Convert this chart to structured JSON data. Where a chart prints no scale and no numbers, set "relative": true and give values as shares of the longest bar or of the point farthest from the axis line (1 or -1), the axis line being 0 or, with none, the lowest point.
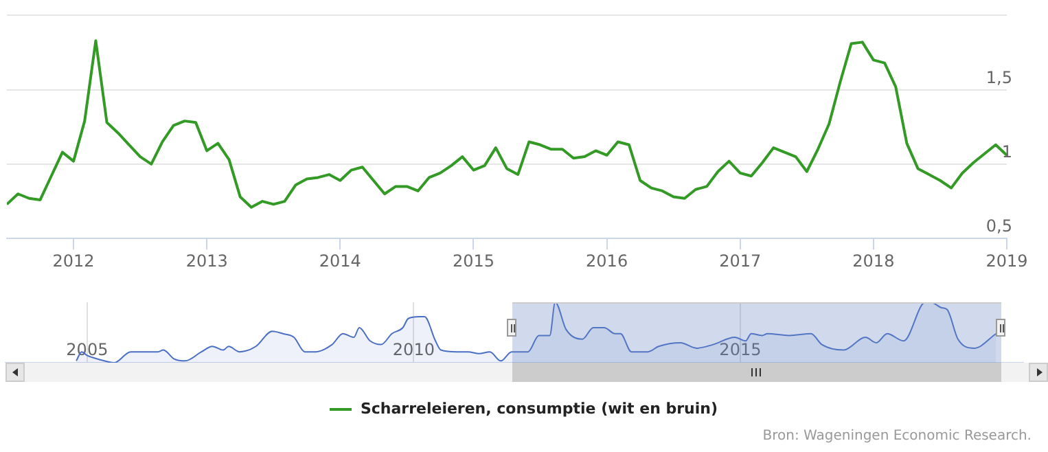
{
  "chart_data": [
    {
      "type": "line",
      "legend": "bottom",
      "grid": "y",
      "marker": "none",
      "line_style": "solid",
      "xlim": [
        "2011-07",
        "2019-01"
      ],
      "xticks": [
        "2012",
        "2013",
        "2014",
        "2015",
        "2016",
        "2017",
        "2018",
        "2019"
      ],
      "ylim": [
        0.5,
        2
      ],
      "yticks": [
        {
          "value": 0.5,
          "label": "0,5"
        },
        1,
        {
          "value": 1.5,
          "label": "1,5"
        },
        {
          "value": 2,
          "label": null
        }
      ],
      "x": [
        "2011-07",
        "2011-08",
        "2011-09",
        "2011-10",
        "2011-11",
        "2011-12",
        "2012-01",
        "2012-02",
        "2012-03",
        "2012-04",
        "2012-05",
        "2012-06",
        "2012-07",
        "2012-08",
        "2012-09",
        "2012-10",
        "2012-11",
        "2012-12",
        "2013-01",
        "2013-02",
        "2013-03",
        "2013-04",
        "2013-05",
        "2013-06",
        "2013-07",
        "2013-08",
        "2013-09",
        "2013-10",
        "2013-11",
        "2013-12",
        "2014-01",
        "2014-02",
        "2014-03",
        "2014-04",
        "2014-05",
        "2014-06",
        "2014-07",
        "2014-08",
        "2014-09",
        "2014-10",
        "2014-11",
        "2014-12",
        "2015-01",
        "2015-02",
        "2015-03",
        "2015-04",
        "2015-05",
        "2015-06",
        "2015-07",
        "2015-08",
        "2015-09",
        "2015-10",
        "2015-11",
        "2015-12",
        "2016-01",
        "2016-02",
        "2016-03",
        "2016-04",
        "2016-05",
        "2016-06",
        "2016-07",
        "2016-08",
        "2016-09",
        "2016-10",
        "2016-11",
        "2016-12",
        "2017-01",
        "2017-02",
        "2017-03",
        "2017-04",
        "2017-05",
        "2017-06",
        "2017-07",
        "2017-08",
        "2017-09",
        "2017-10",
        "2017-11",
        "2017-12",
        "2018-01",
        "2018-02",
        "2018-03",
        "2018-04",
        "2018-05",
        "2018-06",
        "2018-07",
        "2018-08",
        "2018-09",
        "2018-10",
        "2018-11",
        "2018-12",
        "2019-01"
      ],
      "series": [
        {
          "name": "Scharreleieren, consumptie (wit en bruin)",
          "color": "#339a26",
          "values": [
            0.73,
            0.8,
            0.77,
            0.76,
            0.92,
            1.08,
            1.02,
            1.29,
            1.83,
            1.28,
            1.21,
            1.13,
            1.05,
            1.0,
            1.15,
            1.26,
            1.29,
            1.28,
            1.09,
            1.14,
            1.03,
            0.78,
            0.71,
            0.75,
            0.73,
            0.75,
            0.86,
            0.9,
            0.91,
            0.93,
            0.89,
            0.96,
            0.98,
            0.89,
            0.8,
            0.85,
            0.85,
            0.82,
            0.91,
            0.94,
            0.99,
            1.05,
            0.96,
            0.99,
            1.11,
            0.97,
            0.93,
            1.15,
            1.13,
            1.1,
            1.1,
            1.04,
            1.05,
            1.09,
            1.06,
            1.15,
            1.13,
            0.89,
            0.84,
            0.82,
            0.78,
            0.77,
            0.83,
            0.85,
            0.95,
            1.02,
            0.94,
            0.92,
            1.01,
            1.11,
            1.08,
            1.05,
            0.95,
            1.1,
            1.27,
            1.55,
            1.81,
            1.82,
            1.7,
            1.68,
            1.52,
            1.14,
            0.97,
            0.93,
            0.89,
            0.84,
            0.94,
            1.01,
            1.07,
            1.13,
            1.06
          ]
        }
      ],
      "annotations": [
        "Bron: Wageningen Economic Research."
      ]
    },
    {
      "type": "area",
      "relative": true,
      "grid": "x",
      "xlim": [
        "2003-10",
        "2019-05"
      ],
      "xticks": [
        "2005",
        "2010",
        "2015"
      ],
      "x": [
        "2004-11",
        "2004-12",
        "2005-01",
        "2005-03",
        "2005-06",
        "2005-09",
        "2005-12",
        "2006-02",
        "2006-03",
        "2006-05",
        "2006-07",
        "2006-10",
        "2006-12",
        "2007-02",
        "2007-03",
        "2007-05",
        "2007-08",
        "2007-11",
        "2008-01",
        "2008-03",
        "2008-05",
        "2008-07",
        "2008-10",
        "2008-12",
        "2009-02",
        "2009-03",
        "2009-05",
        "2009-07",
        "2009-09",
        "2009-11",
        "2009-12",
        "2010-02",
        "2010-03",
        "2010-05",
        "2010-06",
        "2010-09",
        "2010-11",
        "2011-01",
        "2011-03",
        "2011-05",
        "2011-07",
        "2011-10",
        "2011-12",
        "2012-02",
        "2012-03",
        "2012-05",
        "2012-08",
        "2012-10",
        "2012-12",
        "2013-02",
        "2013-03",
        "2013-05",
        "2013-08",
        "2013-10",
        "2014-02",
        "2014-05",
        "2014-08",
        "2014-12",
        "2015-02",
        "2015-03",
        "2015-05",
        "2015-06",
        "2015-10",
        "2016-02",
        "2016-04",
        "2016-08",
        "2016-12",
        "2017-02",
        "2017-04",
        "2017-07",
        "2017-11",
        "2017-12",
        "2018-02",
        "2018-03",
        "2018-05",
        "2018-08",
        "2018-12"
      ],
      "series": [
        {
          "color": "#4a6fc4",
          "values": [
            0.03,
            0.18,
            0.12,
            0.06,
            0,
            0.18,
            0.18,
            0.18,
            0.21,
            0.06,
            0.03,
            0.18,
            0.27,
            0.21,
            0.27,
            0.18,
            0.27,
            0.52,
            0.48,
            0.42,
            0.18,
            0.18,
            0.3,
            0.48,
            0.42,
            0.58,
            0.36,
            0.3,
            0.48,
            0.58,
            0.73,
            0.76,
            0.76,
            0.36,
            0.21,
            0.18,
            0.18,
            0.15,
            0.18,
            0.03,
            0.18,
            0.18,
            0.45,
            0.45,
            1,
            0.55,
            0.39,
            0.58,
            0.58,
            0.48,
            0.48,
            0.18,
            0.18,
            0.27,
            0.33,
            0.24,
            0.3,
            0.42,
            0.36,
            0.48,
            0.45,
            0.48,
            0.45,
            0.48,
            0.3,
            0.21,
            0.42,
            0.33,
            0.48,
            0.36,
            1,
            1,
            0.91,
            0.88,
            0.39,
            0.24,
            0.48
          ]
        }
      ]
    }
  ]
}
